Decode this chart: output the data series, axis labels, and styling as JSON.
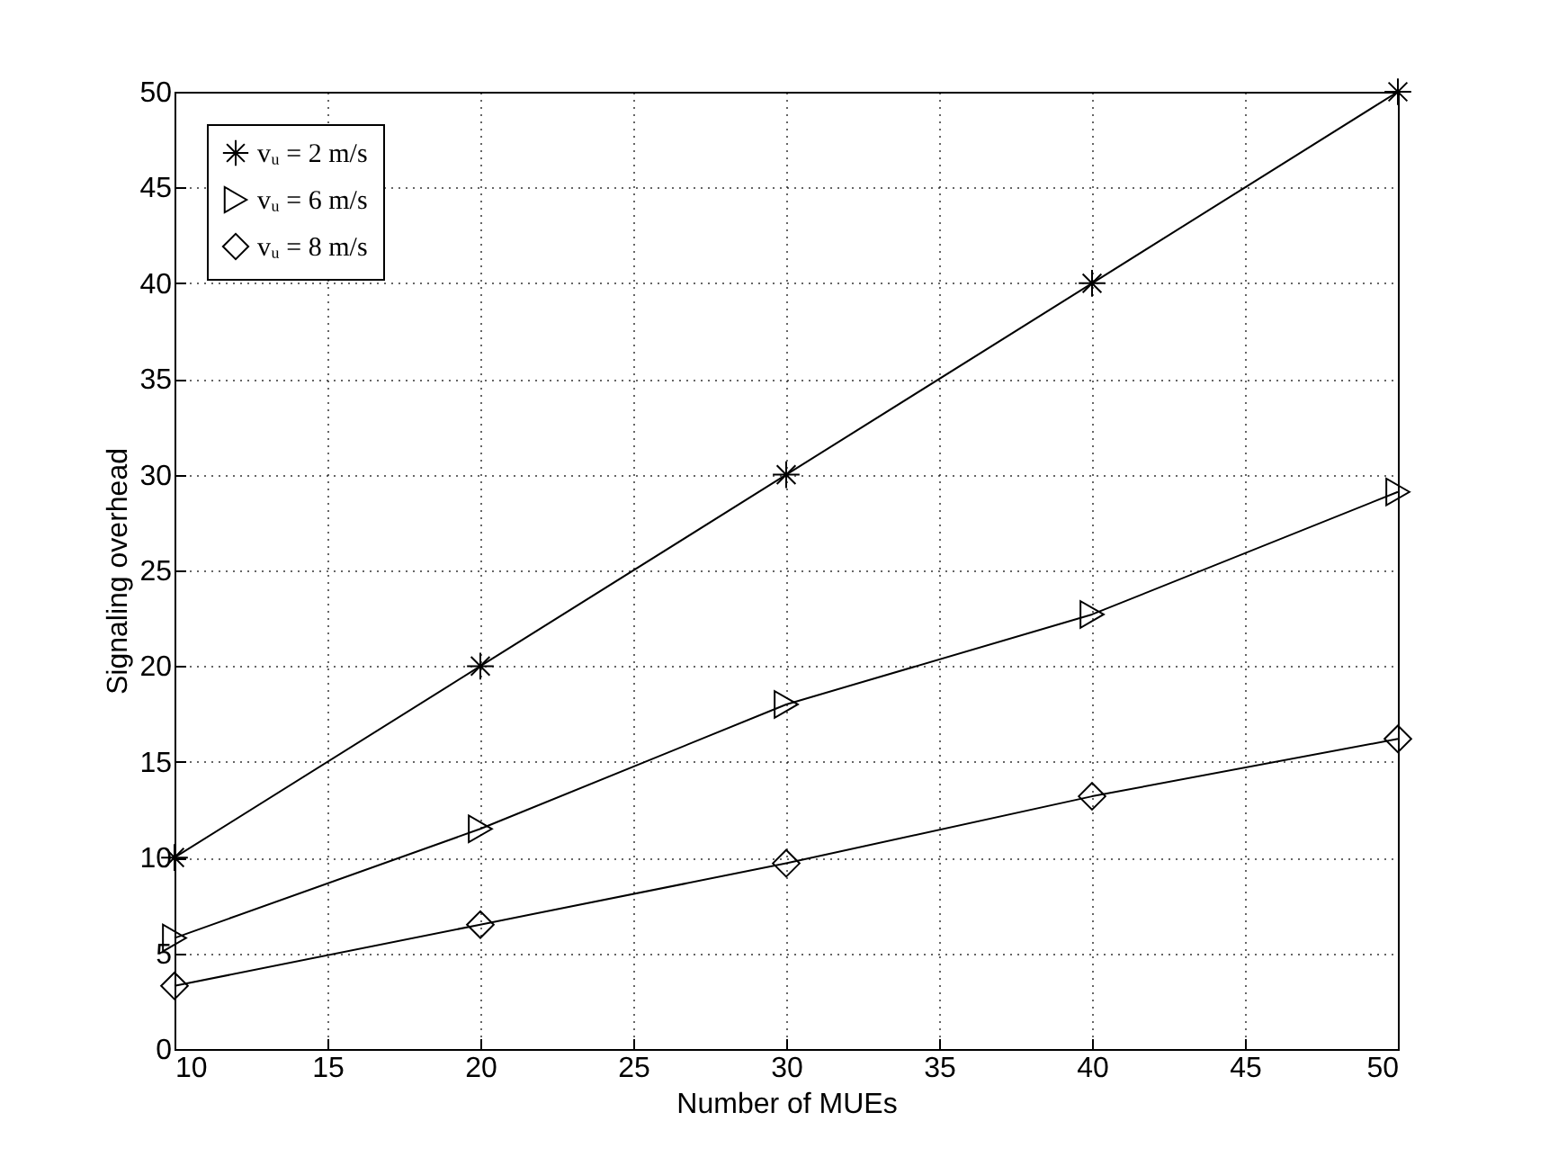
{
  "chart_data": {
    "type": "line",
    "xlabel": "Number of MUEs",
    "ylabel": "Signaling overhead",
    "x": [
      10,
      20,
      30,
      40,
      50
    ],
    "series": [
      {
        "name": "vᵤ = 2 m/s",
        "color": "#000000",
        "marker": "cross",
        "values": [
          10,
          20,
          30,
          40,
          50
        ]
      },
      {
        "name": "vᵤ = 6 m/s",
        "color": "#000000",
        "marker": "triangle",
        "values": [
          5.8,
          11.5,
          18,
          22.7,
          29.1
        ]
      },
      {
        "name": "vᵤ = 8 m/s",
        "color": "#000000",
        "marker": "diamond",
        "values": [
          3.3,
          6.5,
          9.7,
          13.2,
          16.2
        ]
      }
    ],
    "xlim": [
      10,
      50
    ],
    "xticks": [
      10,
      15,
      20,
      25,
      30,
      35,
      40,
      45,
      50
    ],
    "ylim": [
      0,
      50
    ],
    "yticks": [
      0,
      5,
      10,
      15,
      20,
      25,
      30,
      35,
      40,
      45,
      50
    ],
    "grid": true,
    "legend": "top left",
    "line_style": "solid"
  }
}
